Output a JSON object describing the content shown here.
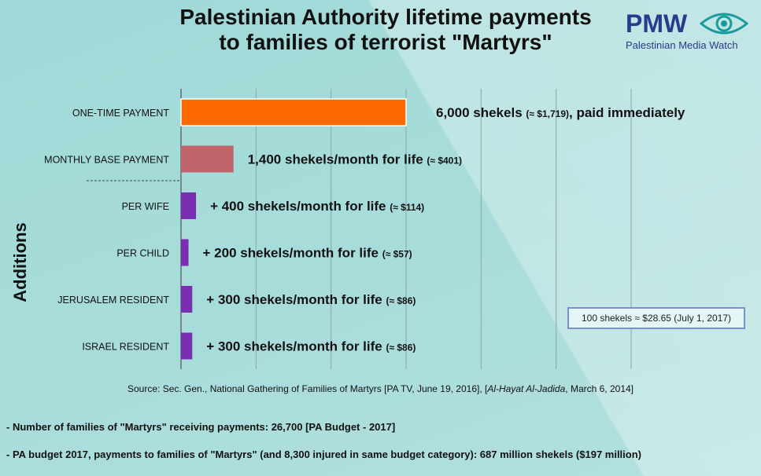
{
  "header": {
    "title_line1": "Palestinian Authority lifetime payments",
    "title_line2": "to families of terrorist \"Martyrs\""
  },
  "logo": {
    "brand": "PMW",
    "subtitle": "Palestinian Media Watch",
    "icon": "eye-icon"
  },
  "chart_data": {
    "type": "bar",
    "orientation": "horizontal",
    "categories": [
      "ONE-TIME PAYMENT",
      "MONTHLY BASE PAYMENT",
      "PER WIFE",
      "PER CHILD",
      "JERUSALEM RESIDENT",
      "ISRAEL RESIDENT"
    ],
    "values": [
      6000,
      1400,
      400,
      200,
      300,
      300
    ],
    "bar_colors": [
      "#ff6a00",
      "#c0646a",
      "#7a2fb0",
      "#7a2fb0",
      "#7a2fb0",
      "#7a2fb0"
    ],
    "value_labels": [
      {
        "main": "6,000 shekels",
        "usd": "(≈ $1,719)",
        "suffix": ", paid immediately"
      },
      {
        "main": "1,400 shekels/month for life",
        "usd": "(≈ $401)",
        "suffix": ""
      },
      {
        "main": "+ 400 shekels/month for life",
        "usd": "(≈ $114)",
        "suffix": ""
      },
      {
        "main": "+ 200 shekels/month for life",
        "usd": "(≈ $57)",
        "suffix": ""
      },
      {
        "main": "+ 300 shekels/month for life",
        "usd": "(≈ $86)",
        "suffix": ""
      },
      {
        "main": "+ 300 shekels/month for life",
        "usd": "(≈ $86)",
        "suffix": ""
      }
    ],
    "group_label": "Additions",
    "xlim": [
      0,
      12000
    ],
    "grid": true
  },
  "note": "100 shekels ≈ $28.65 (July 1, 2017)",
  "source": {
    "prefix": "Source: Sec. Gen., National Gathering of Families of Martyrs [PA TV, June 19, 2016], [",
    "italic": "Al-Hayat Al-Jadida",
    "suffix": ", March 6, 2014]"
  },
  "bullets": [
    "- Number of families of \"Martyrs\" receiving payments: 26,700 [PA Budget - 2017]",
    "- PA budget 2017, payments to families of \"Martyrs\" (and 8,300 injured in same budget category): 687 million shekels ($197 million)"
  ],
  "colors": {
    "background": "#a2dbd9",
    "accent_orange": "#ff6a00",
    "accent_rose": "#c0646a",
    "accent_purple": "#7a2fb0",
    "logo_blue": "#2a3a8c"
  }
}
